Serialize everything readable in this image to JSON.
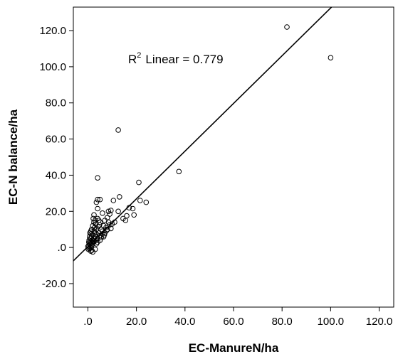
{
  "chart_data": {
    "type": "scatter",
    "title": "",
    "xlabel": "EC-ManureN/ha",
    "ylabel": "EC-N balance/ha",
    "xlim": [
      -6,
      126
    ],
    "ylim": [
      -33,
      133
    ],
    "x_ticks": [
      0,
      20,
      40,
      60,
      80,
      100,
      120
    ],
    "x_tick_labels": [
      ".0",
      "20.0",
      "40.0",
      "60.0",
      "80.0",
      "100.0",
      "120.0"
    ],
    "y_ticks": [
      -20,
      0,
      20,
      40,
      60,
      80,
      100,
      120
    ],
    "y_tick_labels": [
      "-20.0",
      ".0",
      "20.0",
      "40.0",
      "60.0",
      "80.0",
      "100.0",
      "120.0"
    ],
    "grid": false,
    "legend": "none",
    "annotation": {
      "prefix": "R",
      "superscript": "2",
      "text": "Linear = 0.779"
    },
    "fit_line": {
      "slope": 1.32,
      "intercept": 0.5
    },
    "marker": "open-circle",
    "color": "#000000",
    "points": [
      [
        82,
        122
      ],
      [
        100,
        105
      ],
      [
        12.5,
        65
      ],
      [
        37.5,
        42
      ],
      [
        21,
        36
      ],
      [
        4,
        38.5
      ],
      [
        24,
        25
      ],
      [
        21.5,
        26
      ],
      [
        13,
        28
      ],
      [
        17,
        22
      ],
      [
        18.5,
        21.5
      ],
      [
        19,
        18
      ],
      [
        16,
        17.5
      ],
      [
        14.5,
        16
      ],
      [
        15.5,
        15
      ],
      [
        12.5,
        20
      ],
      [
        10.5,
        26
      ],
      [
        3.5,
        25
      ],
      [
        4,
        26.5
      ],
      [
        5,
        26.5
      ],
      [
        4,
        21.5
      ],
      [
        2.5,
        18
      ],
      [
        6,
        19
      ],
      [
        8.5,
        20
      ],
      [
        9.5,
        20.5
      ],
      [
        3,
        15
      ],
      [
        4,
        16
      ],
      [
        5,
        14
      ],
      [
        6.5,
        12
      ],
      [
        7,
        15
      ],
      [
        8,
        16.5
      ],
      [
        9,
        12.5
      ],
      [
        10,
        13
      ],
      [
        11,
        14
      ],
      [
        8,
        10
      ],
      [
        9.5,
        10.5
      ],
      [
        7,
        8
      ],
      [
        6,
        7.5
      ],
      [
        5,
        6.5
      ],
      [
        4,
        5
      ],
      [
        3.5,
        4
      ],
      [
        2.5,
        3.5
      ],
      [
        2,
        2
      ],
      [
        1.5,
        1
      ],
      [
        1,
        0
      ],
      [
        0.5,
        -0.5
      ],
      [
        1,
        1.5
      ],
      [
        1.5,
        2.5
      ],
      [
        2,
        3
      ],
      [
        2.5,
        5
      ],
      [
        3,
        6
      ],
      [
        3,
        8
      ],
      [
        2,
        7
      ],
      [
        1.5,
        6
      ],
      [
        1,
        5
      ],
      [
        0.5,
        4
      ],
      [
        0.5,
        2
      ],
      [
        1,
        3
      ],
      [
        0.3,
        1
      ],
      [
        0,
        0.5
      ],
      [
        0.2,
        -1
      ],
      [
        1.2,
        -2
      ],
      [
        2,
        -2.5
      ],
      [
        3,
        -1
      ],
      [
        1.5,
        10
      ],
      [
        2,
        12
      ],
      [
        2.5,
        14
      ],
      [
        3.5,
        10
      ],
      [
        4.5,
        8
      ],
      [
        5.5,
        10
      ],
      [
        6,
        9
      ],
      [
        7.5,
        11
      ],
      [
        6.5,
        6
      ],
      [
        5,
        4
      ],
      [
        4,
        3
      ],
      [
        3.5,
        2
      ],
      [
        0.8,
        8
      ],
      [
        1.2,
        9
      ],
      [
        0.7,
        6
      ],
      [
        1.8,
        4
      ],
      [
        2.8,
        11
      ],
      [
        3.2,
        13
      ],
      [
        4.2,
        11.5
      ],
      [
        4.8,
        12.5
      ],
      [
        5.5,
        5.5
      ],
      [
        6.8,
        7
      ],
      [
        7.8,
        9.5
      ],
      [
        8.5,
        14
      ],
      [
        2.2,
        16
      ],
      [
        3.8,
        7
      ],
      [
        1.6,
        -1.5
      ],
      [
        0.4,
        3
      ],
      [
        1.3,
        7.5
      ],
      [
        2.6,
        9
      ],
      [
        4.5,
        15
      ],
      [
        9,
        18.5
      ]
    ]
  }
}
